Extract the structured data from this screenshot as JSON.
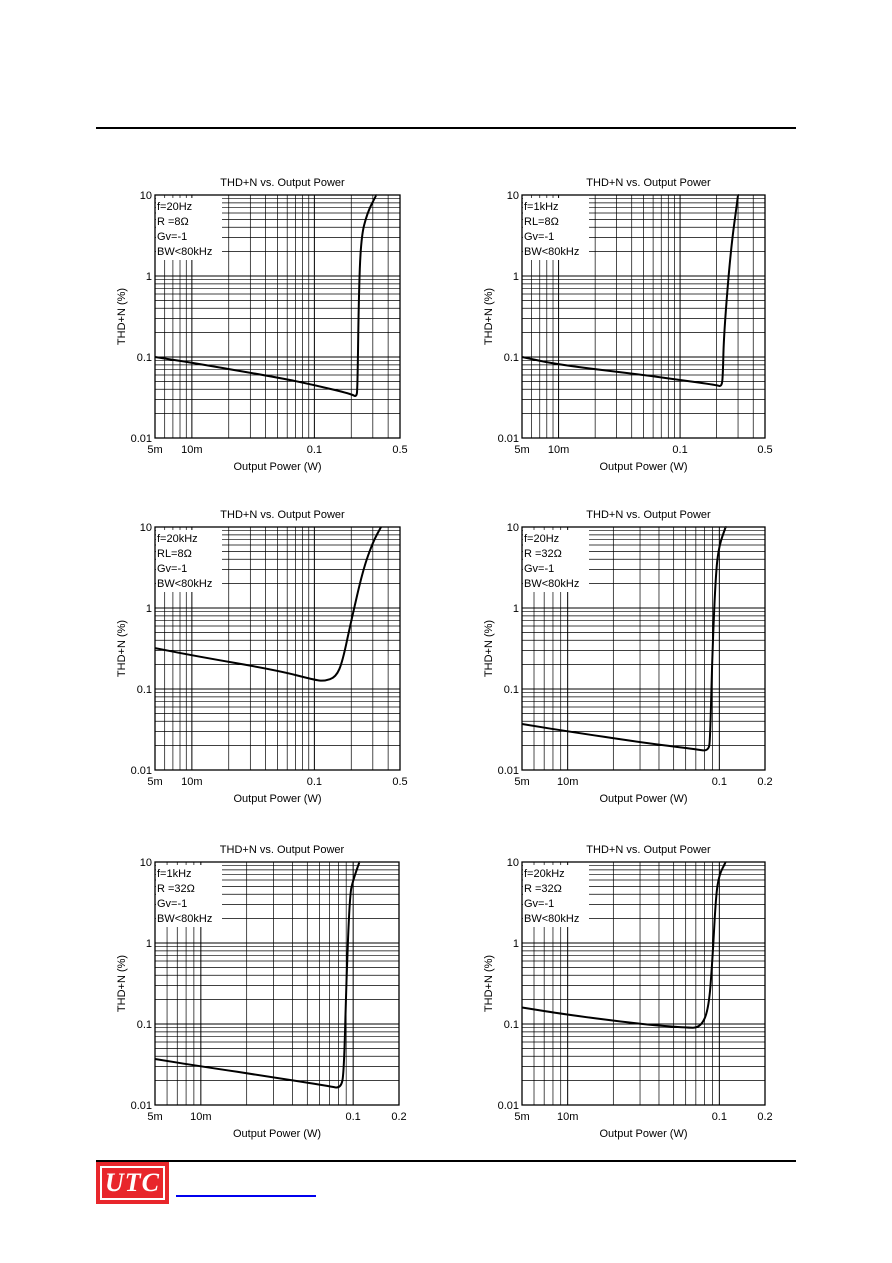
{
  "footer": {
    "logo_text": "UTC"
  },
  "chart_data": [
    {
      "type": "line",
      "title": "THD+N vs. Output Power",
      "xlabel": "Output Power (W)",
      "ylabel": "THD+N (%)",
      "xscale": "log",
      "yscale": "log",
      "xlim": [
        0.005,
        0.5
      ],
      "ylim": [
        0.01,
        10
      ],
      "xticks": [
        "5m",
        "10m",
        "0.1",
        "0.5"
      ],
      "yticks": [
        "0.01",
        "0.1",
        "1",
        "10"
      ],
      "annotations": [
        "f=20Hz",
        "R =8Ω",
        "Gv=-1",
        "BW<80kHz"
      ],
      "series": [
        {
          "x": [
            0.005,
            0.01,
            0.05,
            0.1,
            0.2,
            0.22,
            0.225,
            0.23,
            0.24,
            0.27,
            0.32
          ],
          "y": [
            0.1,
            0.085,
            0.056,
            0.045,
            0.035,
            0.032,
            0.04,
            0.5,
            3,
            6,
            10
          ]
        }
      ]
    },
    {
      "type": "line",
      "title": "THD+N vs. Output Power",
      "xlabel": "Output Power (W)",
      "ylabel": "THD+N (%)",
      "xscale": "log",
      "yscale": "log",
      "xlim": [
        0.005,
        0.5
      ],
      "ylim": [
        0.01,
        10
      ],
      "xticks": [
        "5m",
        "10m",
        "0.1",
        "0.5"
      ],
      "yticks": [
        "0.01",
        "0.1",
        "1",
        "10"
      ],
      "annotations": [
        "f=1kHz",
        "RL=8Ω",
        "Gv=-1",
        "BW<80kHz"
      ],
      "series": [
        {
          "x": [
            0.005,
            0.01,
            0.05,
            0.1,
            0.2,
            0.22,
            0.225,
            0.23,
            0.26,
            0.3
          ],
          "y": [
            0.1,
            0.08,
            0.06,
            0.052,
            0.045,
            0.043,
            0.06,
            0.2,
            2,
            10
          ]
        }
      ]
    },
    {
      "type": "line",
      "title": "THD+N vs. Output Power",
      "xlabel": "Output Power (W)",
      "ylabel": "THD+N (%)",
      "xscale": "log",
      "yscale": "log",
      "xlim": [
        0.005,
        0.5
      ],
      "ylim": [
        0.01,
        10
      ],
      "xticks": [
        "5m",
        "10m",
        "0.1",
        "0.5"
      ],
      "yticks": [
        "0.01",
        "0.1",
        "1",
        "10"
      ],
      "annotations": [
        "f=20kHz",
        "RL=8Ω",
        "Gv=-1",
        "BW<80kHz"
      ],
      "series": [
        {
          "x": [
            0.005,
            0.01,
            0.05,
            0.1,
            0.12,
            0.15,
            0.17,
            0.2,
            0.25,
            0.3,
            0.35
          ],
          "y": [
            0.32,
            0.26,
            0.17,
            0.13,
            0.125,
            0.14,
            0.22,
            0.7,
            3,
            6.5,
            10
          ]
        }
      ]
    },
    {
      "type": "line",
      "title": "THD+N vs. Output Power",
      "xlabel": "Output Power (W)",
      "ylabel": "THD+N (%)",
      "xscale": "log",
      "yscale": "log",
      "xlim": [
        0.005,
        0.2
      ],
      "ylim": [
        0.01,
        10
      ],
      "xticks": [
        "5m",
        "10m",
        "0.1",
        "0.2"
      ],
      "yticks": [
        "0.01",
        "0.1",
        "1",
        "10"
      ],
      "annotations": [
        "f=20Hz",
        "R =32Ω",
        "Gv=-1",
        "BW<80kHz"
      ],
      "series": [
        {
          "x": [
            0.005,
            0.01,
            0.03,
            0.07,
            0.085,
            0.087,
            0.09,
            0.095,
            0.1,
            0.11
          ],
          "y": [
            0.037,
            0.03,
            0.022,
            0.018,
            0.017,
            0.025,
            0.3,
            3,
            6,
            10
          ]
        }
      ]
    },
    {
      "type": "line",
      "title": "THD+N vs. Output Power",
      "xlabel": "Output Power (W)",
      "ylabel": "THD+N (%)",
      "xscale": "log",
      "yscale": "log",
      "xlim": [
        0.005,
        0.2
      ],
      "ylim": [
        0.01,
        10
      ],
      "xticks": [
        "5m",
        "10m",
        "0.1",
        "0.2"
      ],
      "yticks": [
        "0.01",
        "0.1",
        "1",
        "10"
      ],
      "annotations": [
        "f=1kHz",
        "R =32Ω",
        "Gv=-1",
        "BW<80kHz"
      ],
      "series": [
        {
          "x": [
            0.005,
            0.01,
            0.03,
            0.07,
            0.083,
            0.087,
            0.09,
            0.095,
            0.1,
            0.11
          ],
          "y": [
            0.037,
            0.03,
            0.022,
            0.017,
            0.016,
            0.025,
            0.3,
            4,
            6,
            10
          ]
        }
      ]
    },
    {
      "type": "line",
      "title": "THD+N vs. Output Power",
      "xlabel": "Output Power (W)",
      "ylabel": "THD+N (%)",
      "xscale": "log",
      "yscale": "log",
      "xlim": [
        0.005,
        0.2
      ],
      "ylim": [
        0.01,
        10
      ],
      "xticks": [
        "5m",
        "10m",
        "0.1",
        "0.2"
      ],
      "yticks": [
        "0.01",
        "0.1",
        "1",
        "10"
      ],
      "annotations": [
        "f=20kHz",
        "R =32Ω",
        "Gv=-1",
        "BW<80kHz"
      ],
      "series": [
        {
          "x": [
            0.005,
            0.01,
            0.03,
            0.06,
            0.075,
            0.085,
            0.09,
            0.095,
            0.1,
            0.11
          ],
          "y": [
            0.16,
            0.13,
            0.1,
            0.09,
            0.09,
            0.15,
            0.6,
            4,
            7,
            10
          ]
        }
      ]
    }
  ]
}
